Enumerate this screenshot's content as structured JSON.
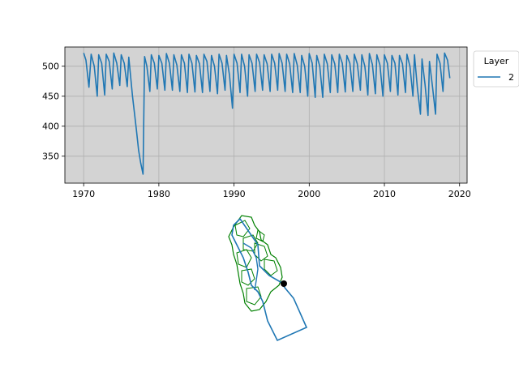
{
  "chart_data": [
    {
      "type": "line",
      "title": "",
      "xlabel": "",
      "ylabel": "",
      "xlim": [
        1967.5,
        2021.0
      ],
      "ylim": [
        305,
        532
      ],
      "grid": true,
      "background_color": "#d3d3d3",
      "x_ticks": [
        1970,
        1980,
        1990,
        2000,
        2010,
        2020
      ],
      "x_tick_labels": [
        "1970",
        "1980",
        "1990",
        "2000",
        "2010",
        "2020"
      ],
      "y_ticks": [
        350,
        400,
        450,
        500
      ],
      "y_tick_labels": [
        "350",
        "400",
        "450",
        "500"
      ],
      "legend": {
        "title": "Layer",
        "placement": "outside-top-right",
        "entries": [
          "2"
        ]
      },
      "series": [
        {
          "name": "2",
          "color": "#1f77b4",
          "x": [
            1970.0,
            1970.3,
            1970.7,
            1971.0,
            1971.4,
            1971.8,
            1972.0,
            1972.4,
            1972.8,
            1973.0,
            1973.4,
            1973.8,
            1974.0,
            1974.4,
            1974.8,
            1975.0,
            1975.4,
            1975.8,
            1976.0,
            1976.5,
            1977.0,
            1977.3,
            1977.6,
            1977.9,
            1978.1,
            1978.4,
            1978.8,
            1979.0,
            1979.4,
            1979.8,
            1980.0,
            1980.4,
            1980.8,
            1981.0,
            1981.4,
            1981.8,
            1982.0,
            1982.4,
            1982.8,
            1983.0,
            1983.4,
            1983.8,
            1984.0,
            1984.4,
            1984.8,
            1985.0,
            1985.4,
            1985.8,
            1986.0,
            1986.4,
            1986.8,
            1987.0,
            1987.4,
            1987.8,
            1988.0,
            1988.4,
            1988.8,
            1989.0,
            1989.4,
            1989.8,
            1990.0,
            1990.4,
            1990.8,
            1991.0,
            1991.4,
            1991.8,
            1992.0,
            1992.4,
            1992.8,
            1993.0,
            1993.4,
            1993.8,
            1994.0,
            1994.4,
            1994.8,
            1995.0,
            1995.4,
            1995.8,
            1996.0,
            1996.4,
            1996.8,
            1997.0,
            1997.4,
            1997.8,
            1998.0,
            1998.4,
            1998.8,
            1999.0,
            1999.4,
            1999.8,
            2000.0,
            2000.4,
            2000.8,
            2001.0,
            2001.4,
            2001.8,
            2002.0,
            2002.4,
            2002.8,
            2003.0,
            2003.4,
            2003.8,
            2004.0,
            2004.4,
            2004.8,
            2005.0,
            2005.4,
            2005.8,
            2006.0,
            2006.4,
            2006.8,
            2007.0,
            2007.4,
            2007.8,
            2008.0,
            2008.4,
            2008.8,
            2009.0,
            2009.4,
            2009.8,
            2010.0,
            2010.4,
            2010.8,
            2011.0,
            2011.4,
            2011.8,
            2012.0,
            2012.4,
            2012.8,
            2013.0,
            2013.4,
            2013.8,
            2014.0,
            2014.4,
            2014.8,
            2015.0,
            2015.4,
            2015.8,
            2016.0,
            2016.4,
            2016.8,
            2017.0,
            2017.4,
            2017.8,
            2018.0,
            2018.4,
            2018.7
          ],
          "y": [
            522,
            510,
            465,
            520,
            500,
            450,
            519,
            505,
            452,
            520,
            508,
            462,
            522,
            505,
            468,
            519,
            505,
            466,
            515,
            450,
            395,
            360,
            338,
            320,
            516,
            500,
            458,
            519,
            505,
            462,
            518,
            505,
            460,
            521,
            505,
            460,
            519,
            502,
            458,
            519,
            505,
            456,
            520,
            505,
            457,
            518,
            504,
            456,
            520,
            508,
            458,
            518,
            500,
            454,
            520,
            505,
            460,
            518,
            485,
            430,
            520,
            505,
            456,
            520,
            500,
            450,
            519,
            505,
            458,
            520,
            506,
            460,
            519,
            504,
            458,
            520,
            505,
            460,
            521,
            505,
            458,
            520,
            504,
            456,
            521,
            502,
            456,
            518,
            500,
            450,
            521,
            505,
            448,
            518,
            500,
            448,
            520,
            504,
            456,
            519,
            504,
            456,
            520,
            505,
            457,
            518,
            505,
            458,
            520,
            504,
            460,
            519,
            500,
            452,
            521,
            503,
            454,
            519,
            502,
            450,
            519,
            505,
            458,
            518,
            505,
            452,
            518,
            504,
            456,
            520,
            500,
            450,
            519,
            462,
            420,
            512,
            470,
            418,
            508,
            465,
            420,
            520,
            505,
            458,
            522,
            510,
            480
          ]
        }
      ]
    },
    {
      "type": "map",
      "title": "",
      "description_series": [
        {
          "name": "model boundary",
          "color": "#1f77b4"
        },
        {
          "name": "subbasins",
          "color": "#008000"
        },
        {
          "name": "well location",
          "color": "#000000"
        }
      ]
    }
  ]
}
